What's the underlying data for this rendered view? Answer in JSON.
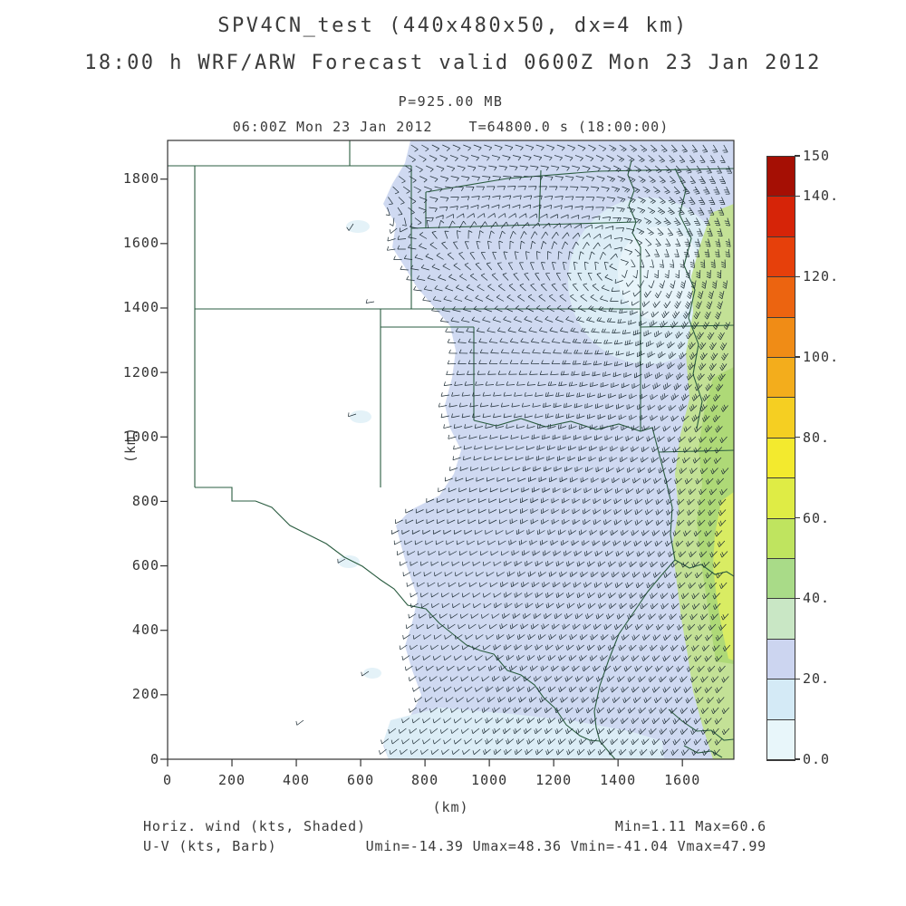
{
  "header": {
    "title": "SPV4CN_test (440x480x50, dx=4 km)",
    "subtitle": "18:00 h WRF/ARW Forecast valid 0600Z Mon 23 Jan 2012"
  },
  "plot_header": {
    "pressure": "P=925.00 MB",
    "valid": "06:00Z Mon 23 Jan 2012    T=64800.0 s (18:00:00)"
  },
  "footer": {
    "legend_line1": "Horiz. wind (kts, Shaded)",
    "legend_line2": "U-V (kts, Barb)",
    "stats_line1": "Min=1.11 Max=60.6",
    "stats_line2": "Umin=-14.39 Umax=48.36 Vmin=-41.04 Vmax=47.99"
  },
  "chart_data": {
    "type": "heatmap",
    "subtype": "wind_speed_shaded_map_with_barbs",
    "title": "SPV4CN_test (440x480x50, dx=4 km)",
    "subtitle": "18:00 h WRF/ARW Forecast valid 0600Z Mon 23 Jan 2012",
    "grid": "440x480x50",
    "grid_spacing": "dx=4 km",
    "level": "P=925.00 MB",
    "valid_time": "06:00Z Mon 23 Jan 2012",
    "forecast_time": "T=64800.0 s (18:00:00)",
    "forecast_hour": "18:00 h",
    "xlabel": "(km)",
    "ylabel": "(km)",
    "x_range": [
      0,
      1760
    ],
    "y_range": [
      0,
      1920
    ],
    "x_ticks": [
      0,
      200,
      400,
      600,
      800,
      1000,
      1200,
      1400,
      1600
    ],
    "y_ticks": [
      0,
      200,
      400,
      600,
      800,
      1000,
      1200,
      1400,
      1600,
      1800
    ],
    "colorbar": {
      "units": "kts",
      "range": [
        0,
        150
      ],
      "levels": [
        0,
        10,
        20,
        30,
        40,
        50,
        60,
        70,
        80,
        90,
        100,
        110,
        120,
        130,
        140,
        150
      ],
      "colors_bottom_to_top": [
        "#e8f6fa",
        "#d4eaf6",
        "#ccd5f0",
        "#c9e7c5",
        "#a9db88",
        "#bfe45f",
        "#dfec45",
        "#f3ea2e",
        "#f5cf22",
        "#f3ad1c",
        "#f08c16",
        "#ec6410",
        "#e6400b",
        "#d62408",
        "#a50f04"
      ],
      "tick_labels": [
        "0.0",
        "20.",
        "40.",
        "60.",
        "80.",
        "100.",
        "120.",
        "140.",
        "150"
      ]
    },
    "stats": {
      "min": 1.11,
      "max": 60.6,
      "umin": -14.39,
      "umax": 48.36,
      "vmin": -41.04,
      "vmax": 47.99
    },
    "shaded_field": "Horizontal wind speed (kts, shaded)",
    "vector_field": "U-V wind barbs (kts)",
    "notes": "Shaded wind speed (max 60.6 kts) covers the eastern two-thirds of the domain with a jagged western edge near x=750 km; cyclonic barb circulation centered near (1500 km, 1480 km); light-blue 0-20 kt core in the upper right and along the bottom; 30-60 kt green/yellow-green southerly jet band along the eastern edge; dark-green state borders of the south-central United States (NM, CO, TX, OK, KS, NE, MO, AR, LA) drawn over the field."
  }
}
